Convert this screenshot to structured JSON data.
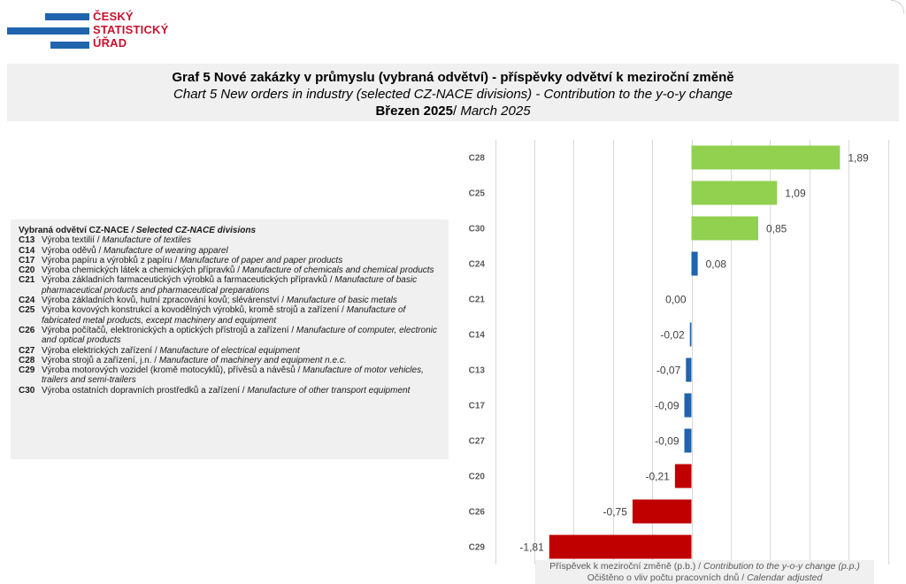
{
  "logo": {
    "lines": [
      "ČESKÝ",
      "STATISTICKÝ",
      "ÚŘAD"
    ]
  },
  "title": {
    "cz": "Graf 5 Nové zakázky v průmyslu  (vybraná odvětví)  - příspěvky  odvětví k meziroční  změně",
    "en": "Chart 5 New orders in industry (selected CZ-NACE divisions) - Contribution to the y-o-y change",
    "period_cz": "Březen 2025",
    "period_sep": "/ ",
    "period_en": " March 2025"
  },
  "legend": {
    "head_cz": "Vybraná odvětví CZ-NACE ",
    "head_en": " / Selected CZ-NACE divisions",
    "items": [
      {
        "code": "C13",
        "cz": "Výroba textilií / ",
        "en": "Manufacture of textiles"
      },
      {
        "code": "C14",
        "cz": "Výroba oděvů / ",
        "en": "Manufacture  of wearing apparel"
      },
      {
        "code": "C17",
        "cz": "Výroba papíru a výrobků z papíru / ",
        "en": "Manufacture of paper and paper products"
      },
      {
        "code": "C20",
        "cz": "Výroba chemických látek a chemických přípravků / ",
        "en": "Manufacture of chemicals and chemical products"
      },
      {
        "code": "C21",
        "cz": "Výroba základních farmaceutických výrobků a farmaceutických přípravků / ",
        "en": "Manufacture of basic pharmaceutical products and pharmaceutical preparations"
      },
      {
        "code": "C24",
        "cz": "Výroba základních kovů, hutní zpracování kovů; slévárenství / ",
        "en": "Manufacture of basic metals"
      },
      {
        "code": "C25",
        "cz": "Výroba kovových konstrukcí a kovodělných výrobků, kromě strojů a zařízení / ",
        "en": "Manufacture of fabricated metal products, except machinery and equipment"
      },
      {
        "code": "C26",
        "cz": "Výroba počítačů, elektronických a optických přístrojů a zařízení / ",
        "en": "Manufacture of computer, electronic and optical products"
      },
      {
        "code": "C27",
        "cz": "Výroba elektrických zařízení / ",
        "en": "Manufacture of electrical equipment"
      },
      {
        "code": "C28",
        "cz": "Výroba strojů a zařízení, j.n. / ",
        "en": "Manufacture of machinery and equipment n.e.c."
      },
      {
        "code": "C29",
        "cz": "Výroba motorových vozidel (kromě motocyklů), přívěsů a návěsů / ",
        "en": "Manufacture of motor vehicles, trailers and semi-trailers"
      },
      {
        "code": "C30",
        "cz": "Výroba ostatních dopravních prostředků a zařízení / ",
        "en": "Manufacture of other transport equipment"
      }
    ]
  },
  "footer": {
    "line1_cz": "Příspěvek  k meziroční  změně  (p.b.) / ",
    "line1_en": "Contribution to the y-o-y change (p.p.)",
    "line2_cz": "Očištěno  o vliv počtu pracovních dnů / ",
    "line2_en": "Calendar adjusted"
  },
  "chart_data": {
    "type": "bar",
    "orientation": "horizontal",
    "categories": [
      "C28",
      "C25",
      "C30",
      "C24",
      "C21",
      "C14",
      "C13",
      "C17",
      "C27",
      "C20",
      "C26",
      "C29"
    ],
    "values": [
      1.89,
      1.09,
      0.85,
      0.08,
      0.0,
      -0.02,
      -0.07,
      -0.09,
      -0.09,
      -0.21,
      -0.75,
      -1.81
    ],
    "value_labels": [
      "1,89",
      "1,09",
      "0,85",
      "0,08",
      "0,00",
      "-0,02",
      "-0,07",
      "-0,09",
      "-0,09",
      "-0,21",
      "-0,75",
      "-1,81"
    ],
    "bar_colors": [
      "#92d050",
      "#92d050",
      "#92d050",
      "#1f64ad",
      "#1f64ad",
      "#1f64ad",
      "#1f64ad",
      "#1f64ad",
      "#1f64ad",
      "#c00000",
      "#c00000",
      "#c00000"
    ],
    "xlim": [
      -2.5,
      2.5
    ],
    "x_grid_step": 0.5,
    "grid": true,
    "xlabel": "Příspěvek  k meziroční  změně  (p.b.) / Contribution to the y-o-y change (p.p.)",
    "ylabel": "",
    "title": "Graf 5 Nové zakázky v průmyslu  (vybraná odvětví)  - příspěvky  odvětví k meziroční  změně"
  }
}
